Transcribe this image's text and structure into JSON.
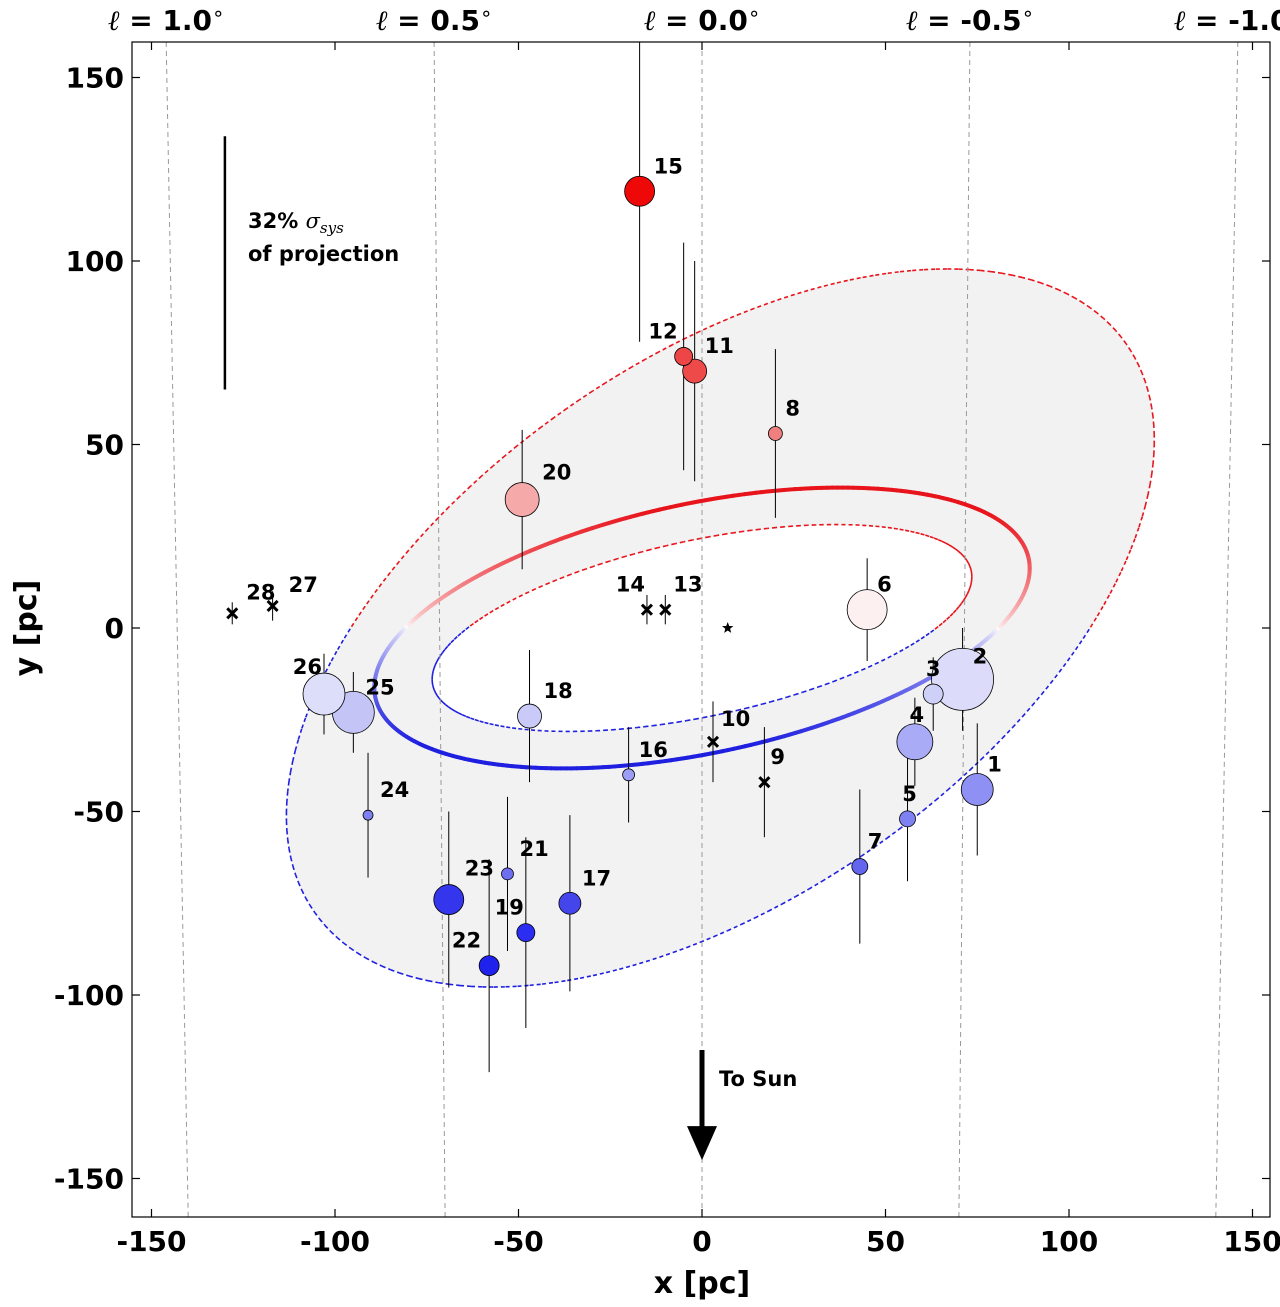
{
  "chart_data": {
    "type": "scatter",
    "xlabel": "x [pc]",
    "ylabel": "y [pc]",
    "xlim": [
      -160,
      160
    ],
    "ylim": [
      -160,
      160
    ],
    "x_ticks": [
      -150,
      -100,
      -50,
      0,
      50,
      100,
      150
    ],
    "y_ticks": [
      -150,
      -100,
      -50,
      0,
      50,
      100,
      150
    ],
    "x_tick_labels": [
      "-150",
      "-100",
      "-50",
      "0",
      "50",
      "100",
      "150"
    ],
    "y_tick_labels": [
      "-150",
      "-100",
      "-50",
      "0",
      "50",
      "100",
      "150"
    ],
    "longitude_lines": [
      {
        "label_prefix": "ℓ = ",
        "value": "1.0",
        "degree": "∘",
        "x_top": -146,
        "x_bottom": -140
      },
      {
        "label_prefix": "ℓ = ",
        "value": "0.5",
        "degree": "∘",
        "x_top": -73,
        "x_bottom": -70
      },
      {
        "label_prefix": "ℓ = ",
        "value": "0.0",
        "degree": "∘",
        "x_top": 0,
        "x_bottom": 0
      },
      {
        "label_prefix": "ℓ = ",
        "value": "-0.5",
        "degree": "∘",
        "x_top": 73,
        "x_bottom": 70
      },
      {
        "label_prefix": "ℓ = ",
        "value": "-1.0",
        "degree": "∘",
        "x_top": 146,
        "x_bottom": 140
      }
    ],
    "systematic_bar": {
      "x": -130,
      "y_low": 65,
      "y_high": 134,
      "line1": "32% ",
      "symbol": "σ",
      "subscript": "sys",
      "line2": "of projection"
    },
    "arrow": {
      "x": 0,
      "y_start": -115,
      "y_end": -145,
      "label": "To Sun"
    },
    "sgr_a_star": {
      "x": 7,
      "y": 0
    },
    "orbit": {
      "cx": 0,
      "cy": 0,
      "rx": 91,
      "ry": 34,
      "angle_deg": 12
    },
    "inner_band": {
      "cx": 0,
      "cy": 0,
      "rx": 75,
      "ry": 24,
      "angle_deg": 12
    },
    "outer_band": {
      "cx": 5,
      "cy": 0,
      "rx": 135,
      "ry": 73,
      "angle_deg": 35
    },
    "red_color": "#e8141c",
    "blue_color": "#1f1fe0",
    "grey_fill": "#f2f2f2",
    "points": [
      {
        "id": "1",
        "x": 75,
        "y": -44,
        "yerr_low": 18,
        "yerr_high": 18,
        "size": 16,
        "color": "#8f90f4",
        "marker": "circle"
      },
      {
        "id": "2",
        "x": 71,
        "y": -14,
        "yerr_low": 14,
        "yerr_high": 14,
        "size": 31,
        "color": "#dcdcfa",
        "marker": "circle"
      },
      {
        "id": "3",
        "x": 63,
        "y": -18,
        "yerr_low": 10,
        "yerr_high": 10,
        "size": 10,
        "color": "#cfd0f8",
        "marker": "circle"
      },
      {
        "id": "4",
        "x": 58,
        "y": -31,
        "yerr_low": 12,
        "yerr_high": 12,
        "size": 18,
        "color": "#a9abf6",
        "marker": "circle"
      },
      {
        "id": "5",
        "x": 56,
        "y": -52,
        "yerr_low": 17,
        "yerr_high": 17,
        "size": 8,
        "color": "#7f80f2",
        "marker": "circle"
      },
      {
        "id": "6",
        "x": 45,
        "y": 5,
        "yerr_low": 14,
        "yerr_high": 14,
        "size": 20,
        "color": "#fdf0f0",
        "marker": "circle"
      },
      {
        "id": "7",
        "x": 43,
        "y": -65,
        "yerr_low": 21,
        "yerr_high": 21,
        "size": 8,
        "color": "#6465ee",
        "marker": "circle"
      },
      {
        "id": "8",
        "x": 20,
        "y": 53,
        "yerr_low": 23,
        "yerr_high": 23,
        "size": 7,
        "color": "#f08080",
        "marker": "circle"
      },
      {
        "id": "9",
        "x": 17,
        "y": -42,
        "yerr_low": 15,
        "yerr_high": 15,
        "size": 5,
        "color": "#000000",
        "marker": "x"
      },
      {
        "id": "10",
        "x": 3,
        "y": -31,
        "yerr_low": 11,
        "yerr_high": 11,
        "size": 5,
        "color": "#000000",
        "marker": "x"
      },
      {
        "id": "11",
        "x": -2,
        "y": 70,
        "yerr_low": 30,
        "yerr_high": 30,
        "size": 12,
        "color": "#ee4a4a",
        "marker": "circle"
      },
      {
        "id": "12",
        "x": -5,
        "y": 74,
        "yerr_low": 31,
        "yerr_high": 31,
        "size": 9,
        "color": "#ee4646",
        "marker": "circle"
      },
      {
        "id": "13",
        "x": -10,
        "y": 5,
        "yerr_low": 4,
        "yerr_high": 4,
        "size": 5,
        "color": "#000000",
        "marker": "x"
      },
      {
        "id": "14",
        "x": -15,
        "y": 5,
        "yerr_low": 4,
        "yerr_high": 4,
        "size": 5,
        "color": "#000000",
        "marker": "x"
      },
      {
        "id": "15",
        "x": -17,
        "y": 119,
        "yerr_low": 41,
        "yerr_high": 41,
        "size": 15,
        "color": "#ee0808",
        "marker": "circle"
      },
      {
        "id": "16",
        "x": -20,
        "y": -40,
        "yerr_low": 13,
        "yerr_high": 13,
        "size": 6,
        "color": "#9c9df4",
        "marker": "circle"
      },
      {
        "id": "17",
        "x": -36,
        "y": -75,
        "yerr_low": 24,
        "yerr_high": 24,
        "size": 11,
        "color": "#4446ec",
        "marker": "circle"
      },
      {
        "id": "18",
        "x": -47,
        "y": -24,
        "yerr_low": 18,
        "yerr_high": 18,
        "size": 12,
        "color": "#c9caf8",
        "marker": "circle"
      },
      {
        "id": "19",
        "x": -48,
        "y": -83,
        "yerr_low": 26,
        "yerr_high": 26,
        "size": 9,
        "color": "#2b2df0",
        "marker": "circle"
      },
      {
        "id": "20",
        "x": -49,
        "y": 35,
        "yerr_low": 19,
        "yerr_high": 19,
        "size": 17,
        "color": "#f5a9a9",
        "marker": "circle"
      },
      {
        "id": "21",
        "x": -53,
        "y": -67,
        "yerr_low": 21,
        "yerr_high": 21,
        "size": 6,
        "color": "#6d6ef0",
        "marker": "circle"
      },
      {
        "id": "22",
        "x": -58,
        "y": -92,
        "yerr_low": 29,
        "yerr_high": 29,
        "size": 10,
        "color": "#1f21ec",
        "marker": "circle"
      },
      {
        "id": "23",
        "x": -69,
        "y": -74,
        "yerr_low": 24,
        "yerr_high": 24,
        "size": 15,
        "color": "#3436ee",
        "marker": "circle"
      },
      {
        "id": "24",
        "x": -91,
        "y": -51,
        "yerr_low": 17,
        "yerr_high": 17,
        "size": 5,
        "color": "#7f80f2",
        "marker": "circle"
      },
      {
        "id": "25",
        "x": -95,
        "y": -23,
        "yerr_low": 11,
        "yerr_high": 11,
        "size": 21,
        "color": "#c4c5f6",
        "marker": "circle"
      },
      {
        "id": "26",
        "x": -103,
        "y": -18,
        "yerr_low": 11,
        "yerr_high": 11,
        "size": 21,
        "color": "#dddefa",
        "marker": "circle"
      },
      {
        "id": "27",
        "x": -117,
        "y": 6,
        "yerr_low": 4,
        "yerr_high": 4,
        "size": 5,
        "color": "#000000",
        "marker": "x"
      },
      {
        "id": "28",
        "x": -128,
        "y": 4,
        "yerr_low": 3,
        "yerr_high": 3,
        "size": 5,
        "color": "#000000",
        "marker": "x"
      }
    ]
  }
}
